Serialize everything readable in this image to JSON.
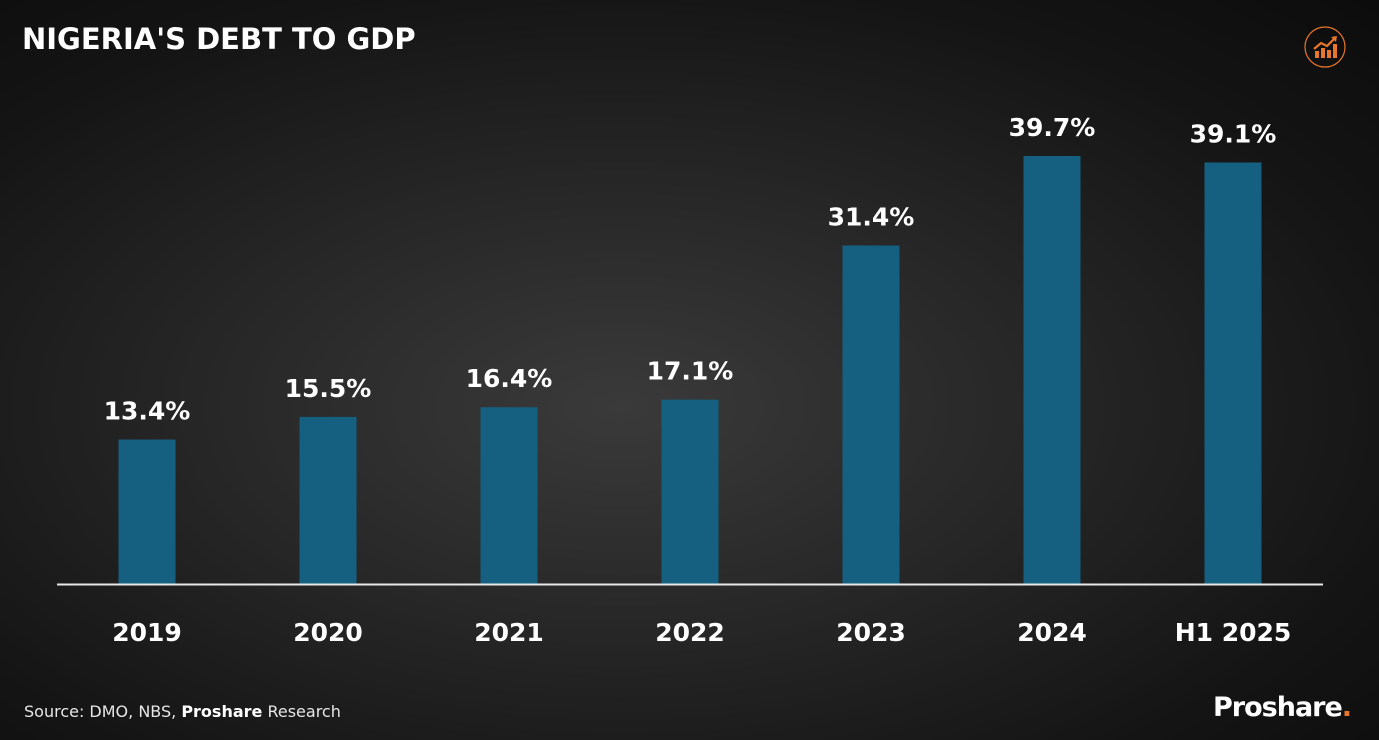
{
  "title": "NIGERIA'S DEBT TO GDP",
  "icon": "growth-chart-icon",
  "colors": {
    "bar": "#155f80",
    "accent": "#e8762c",
    "text": "#ffffff"
  },
  "chart_data": {
    "type": "bar",
    "title": "NIGERIA'S DEBT TO GDP",
    "categories": [
      "2019",
      "2020",
      "2021",
      "2022",
      "2023",
      "2024",
      "H1 2025"
    ],
    "values": [
      13.4,
      15.5,
      16.4,
      17.1,
      31.4,
      39.7,
      39.1
    ],
    "data_labels": [
      "13.4%",
      "15.5%",
      "16.4%",
      "17.1%",
      "31.4%",
      "39.7%",
      "39.1%"
    ],
    "xlabel": "",
    "ylabel": "",
    "ylim": [
      0,
      40
    ],
    "grid": false,
    "legend": "none"
  },
  "source": {
    "prefix": "Source: DMO, NBS, ",
    "bold": "Proshare",
    "suffix": " Research"
  },
  "brand": {
    "name": "Proshare",
    "dot": "."
  }
}
